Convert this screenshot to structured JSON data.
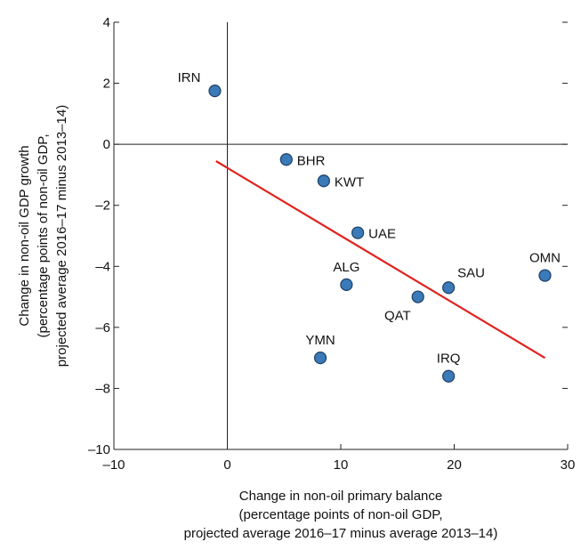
{
  "colors": {
    "marker_fill": "#3a7ab8",
    "marker_stroke": "#1f3f66",
    "trend_line": "#e0221d",
    "axis": "#222222"
  },
  "chart_data": {
    "type": "scatter",
    "title": "",
    "xlabel": [
      "Change in non-oil primary balance",
      "(percentage points of non-oil GDP,",
      "projected average 2016–17 minus average 2013–14)"
    ],
    "ylabel": [
      "Change in non-oil GDP growth",
      "(percentage points of non-oil GDP,",
      "projected average 2016–17 minus 2013–14)"
    ],
    "xlim": [
      -10,
      30
    ],
    "ylim": [
      -10,
      4
    ],
    "x_ticks": [
      -10,
      0,
      10,
      20,
      30
    ],
    "x_tick_labels": [
      "–10",
      "0",
      "10",
      "20",
      "30"
    ],
    "y_ticks": [
      -10,
      -8,
      -6,
      -4,
      -2,
      0,
      2,
      4
    ],
    "y_tick_labels": [
      "–10",
      "–8",
      "–6",
      "–4",
      "–2",
      "0",
      "2",
      "4"
    ],
    "grid": false,
    "points": [
      {
        "label": "IRN",
        "x": -1.1,
        "y": 1.75,
        "label_pos": "upper-left"
      },
      {
        "label": "BHR",
        "x": 5.2,
        "y": -0.5,
        "label_pos": "right"
      },
      {
        "label": "KWT",
        "x": 8.5,
        "y": -1.2,
        "label_pos": "right"
      },
      {
        "label": "UAE",
        "x": 11.5,
        "y": -2.9,
        "label_pos": "right"
      },
      {
        "label": "ALG",
        "x": 10.5,
        "y": -4.6,
        "label_pos": "above"
      },
      {
        "label": "SAU",
        "x": 19.5,
        "y": -4.7,
        "label_pos": "upper-right"
      },
      {
        "label": "OMN",
        "x": 28.0,
        "y": -4.3,
        "label_pos": "above"
      },
      {
        "label": "QAT",
        "x": 16.8,
        "y": -5.0,
        "label_pos": "lower-left"
      },
      {
        "label": "YMN",
        "x": 8.2,
        "y": -7.0,
        "label_pos": "above"
      },
      {
        "label": "IRQ",
        "x": 19.5,
        "y": -7.6,
        "label_pos": "above"
      }
    ],
    "trend_line": {
      "x": [
        -1.0,
        28.0
      ],
      "y": [
        -0.55,
        -7.0
      ]
    }
  }
}
